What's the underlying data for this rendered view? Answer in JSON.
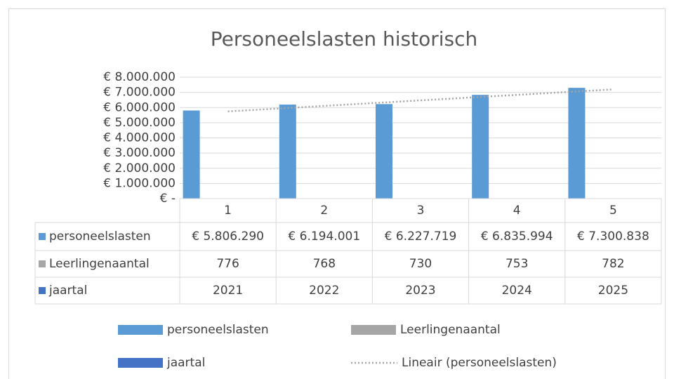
{
  "chart_data": {
    "type": "bar",
    "title": "Personeelslasten historisch",
    "categories": [
      "1",
      "2",
      "3",
      "4",
      "5"
    ],
    "series": [
      {
        "name": "personeelslasten",
        "color": "#5b9bd5",
        "values": [
          5806290,
          6194001,
          6227719,
          6835994,
          7300838
        ],
        "value_labels": [
          "€ 5.806.290",
          "€ 6.194.001",
          "€ 6.227.719",
          "€ 6.835.994",
          "€ 7.300.838"
        ]
      },
      {
        "name": "Leerlingenaantal",
        "color": "#a5a5a5",
        "values": [
          776,
          768,
          730,
          753,
          782
        ]
      },
      {
        "name": "jaartal",
        "color": "#4472c4",
        "values": [
          2021,
          2022,
          2023,
          2024,
          2025
        ]
      }
    ],
    "trendline": {
      "name": "Lineair (personeelslasten)",
      "color": "#a5a5a5",
      "values": [
        5746750,
        6109859,
        6472968,
        6836077,
        7199186
      ]
    },
    "ylim": [
      0,
      8000000
    ],
    "yticks": [
      {
        "value": 0,
        "label": "€ -"
      },
      {
        "value": 1000000,
        "label": "€ 1.000.000"
      },
      {
        "value": 2000000,
        "label": "€ 2.000.000"
      },
      {
        "value": 3000000,
        "label": "€ 3.000.000"
      },
      {
        "value": 4000000,
        "label": "€ 4.000.000"
      },
      {
        "value": 5000000,
        "label": "€ 5.000.000"
      },
      {
        "value": 6000000,
        "label": "€ 6.000.000"
      },
      {
        "value": 7000000,
        "label": "€ 7.000.000"
      },
      {
        "value": 8000000,
        "label": "€ 8.000.000"
      }
    ],
    "grid": true,
    "legend": "bottom",
    "data_table": true
  }
}
